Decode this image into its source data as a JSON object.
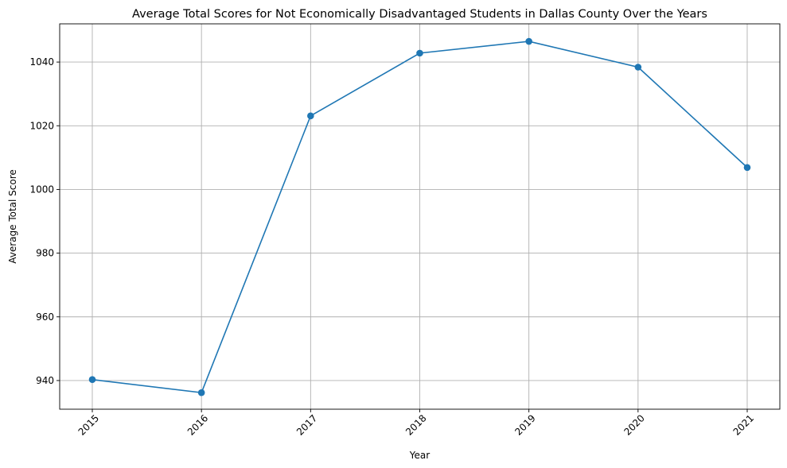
{
  "chart_data": {
    "type": "line",
    "title": "Average Total Scores for Not Economically Disadvantaged Students in Dallas County Over the Years",
    "xlabel": "Year",
    "ylabel": "Average Total Score",
    "x": [
      "2015",
      "2016",
      "2017",
      "2018",
      "2019",
      "2020",
      "2021"
    ],
    "y_ticks": [
      940,
      960,
      980,
      1000,
      1020,
      1040
    ],
    "ylim": [
      931,
      1052
    ],
    "grid": true,
    "x_tick_rotation": 45,
    "series": [
      {
        "name": "",
        "color": "#1f77b4",
        "marker": "circle",
        "values": [
          940.3,
          936.2,
          1023.1,
          1042.8,
          1046.5,
          1038.4,
          1006.9
        ]
      }
    ]
  }
}
